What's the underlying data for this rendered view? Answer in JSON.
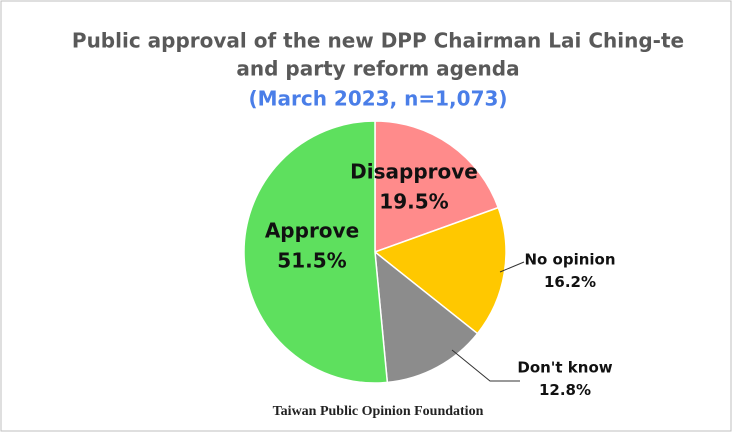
{
  "chart_data": {
    "type": "pie",
    "title_lines": [
      "Public approval of the new DPP Chairman Lai Ching-te",
      "and party reform agenda"
    ],
    "subtitle": "(March 2023, n=1,073)",
    "categories": [
      "Disapprove",
      "No opinion",
      "Don't know",
      "Approve"
    ],
    "values": [
      19.5,
      16.2,
      12.8,
      51.5
    ],
    "value_labels": [
      "19.5%",
      "16.2%",
      "12.8%",
      "51.5%"
    ],
    "colors": [
      "#ff8b8b",
      "#ffc800",
      "#8c8c8c",
      "#5ee05e"
    ],
    "source": "Taiwan Public Opinion Foundation"
  }
}
